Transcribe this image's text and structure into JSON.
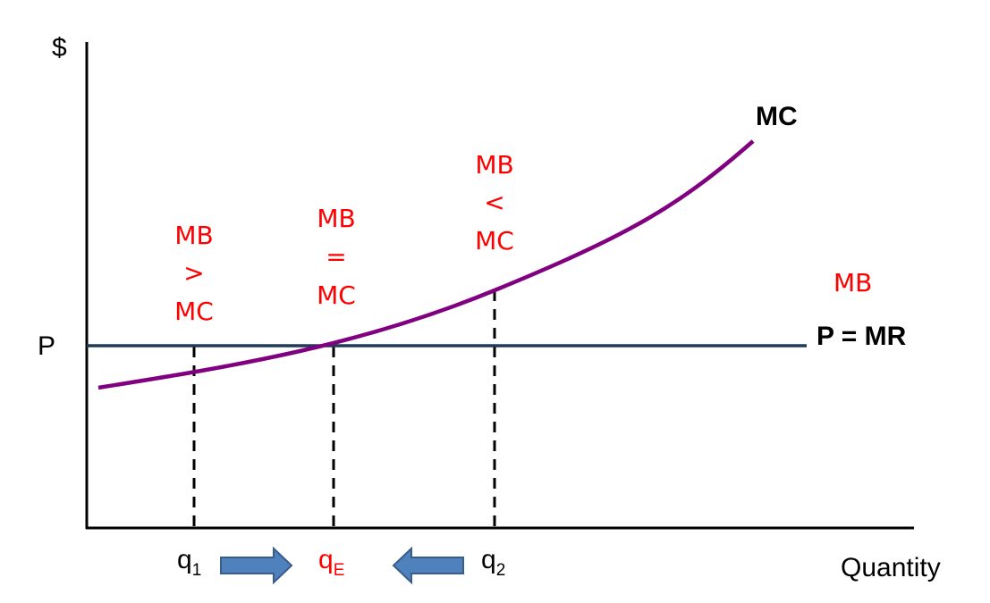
{
  "axes": {
    "y_label": "$",
    "x_label": "Quantity",
    "price_label": "P"
  },
  "curves": {
    "mc_label": "MC",
    "pmr_label": "P = MR",
    "mb_label": "MB",
    "mc_color": "#800080",
    "price_line_color": "#1f3b57"
  },
  "quantities": {
    "q1": {
      "base": "q",
      "sub": "1"
    },
    "qe": {
      "base": "q",
      "sub": "E"
    },
    "q2": {
      "base": "q",
      "sub": "2"
    }
  },
  "comparisons": {
    "left": {
      "line1": "MB",
      "line2": ">",
      "line3": "MC"
    },
    "middle": {
      "line1": "MB",
      "line2": "=",
      "line3": "MC"
    },
    "right": {
      "line1": "MB",
      "line2": "<",
      "line3": "MC"
    }
  },
  "arrows": {
    "right_arrow": "arrow-right-icon",
    "left_arrow": "arrow-left-icon",
    "color": "#4f81bd",
    "border": "#385d8a"
  },
  "colors": {
    "annotation": "#ff0000",
    "axis": "#000000"
  }
}
